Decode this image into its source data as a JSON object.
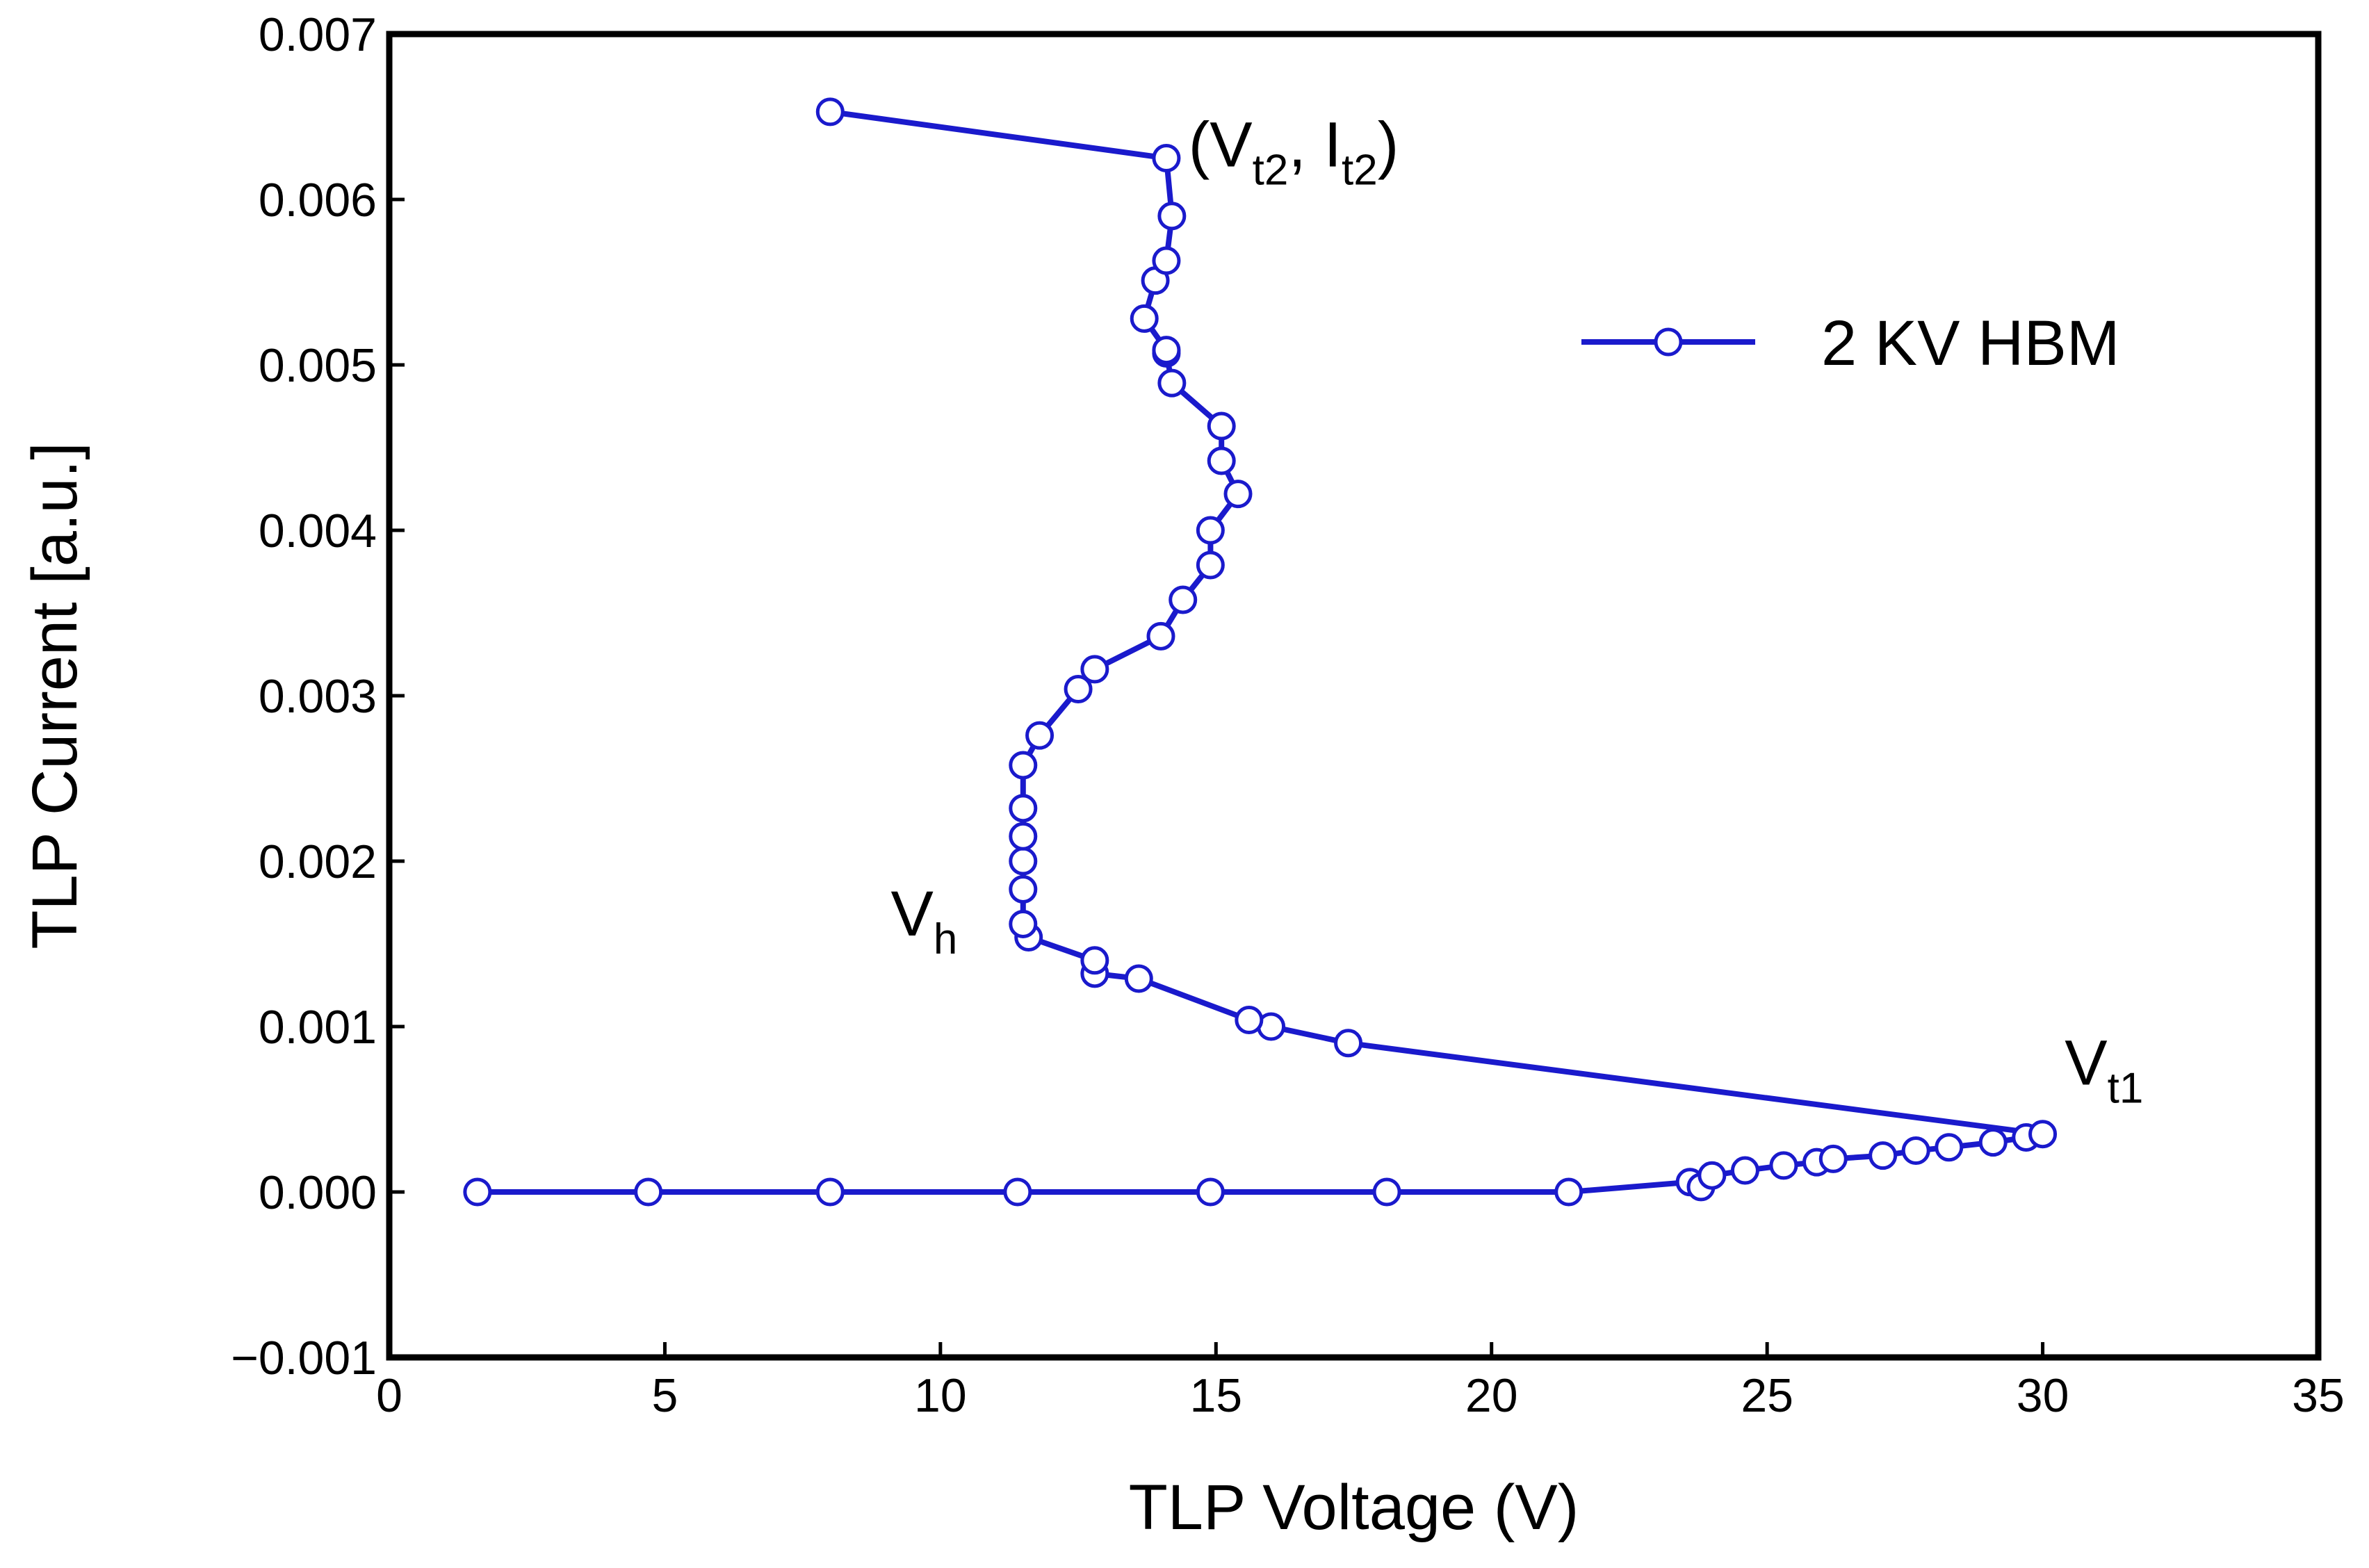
{
  "chart_data": {
    "type": "line",
    "title": "",
    "xlabel": "TLP Voltage (V)",
    "ylabel": "TLP Current [a.u.]",
    "xlim": [
      0,
      35
    ],
    "ylim": [
      -0.001,
      0.007
    ],
    "xticks": [
      0,
      5,
      10,
      15,
      20,
      25,
      30,
      35
    ],
    "xtick_labels": [
      "0",
      "5",
      "10",
      "15",
      "20",
      "25",
      "30",
      "35"
    ],
    "yticks": [
      -0.001,
      0.0,
      0.001,
      0.002,
      0.003,
      0.004,
      0.005,
      0.006,
      0.007
    ],
    "ytick_labels": [
      "−0.001",
      "0.000",
      "0.001",
      "0.002",
      "0.003",
      "0.004",
      "0.005",
      "0.006",
      "0.007"
    ],
    "grid": false,
    "legend_position": "upper-right",
    "series": [
      {
        "name": "2 KV HBM",
        "color": "#1a1acc",
        "marker": "open-circle",
        "points": [
          [
            1.6,
            0.0
          ],
          [
            4.7,
            0.0
          ],
          [
            8.0,
            0.0
          ],
          [
            11.4,
            0.0
          ],
          [
            14.9,
            0.0
          ],
          [
            18.1,
            0.0
          ],
          [
            21.4,
            0.0
          ],
          [
            23.6,
            6e-05
          ],
          [
            23.8,
            3e-05
          ],
          [
            24.0,
            0.0001
          ],
          [
            24.6,
            0.00013
          ],
          [
            25.3,
            0.00016
          ],
          [
            25.9,
            0.00018
          ],
          [
            26.2,
            0.0002
          ],
          [
            27.1,
            0.00022
          ],
          [
            27.7,
            0.00025
          ],
          [
            28.3,
            0.00027
          ],
          [
            29.1,
            0.0003
          ],
          [
            29.7,
            0.00033
          ],
          [
            30.0,
            0.00035
          ],
          [
            17.4,
            0.0009
          ],
          [
            16.0,
            0.001
          ],
          [
            15.6,
            0.00104
          ],
          [
            13.6,
            0.00129
          ],
          [
            12.8,
            0.00132
          ],
          [
            12.8,
            0.0014
          ],
          [
            11.6,
            0.00154
          ],
          [
            11.5,
            0.00162
          ],
          [
            11.5,
            0.00183
          ],
          [
            11.5,
            0.002
          ],
          [
            11.5,
            0.00215
          ],
          [
            11.5,
            0.00232
          ],
          [
            11.5,
            0.00258
          ],
          [
            11.8,
            0.00276
          ],
          [
            12.5,
            0.00304
          ],
          [
            12.8,
            0.00316
          ],
          [
            14.0,
            0.00336
          ],
          [
            14.4,
            0.00358
          ],
          [
            14.9,
            0.00379
          ],
          [
            14.9,
            0.004
          ],
          [
            15.4,
            0.00422
          ],
          [
            15.1,
            0.00442
          ],
          [
            15.1,
            0.00463
          ],
          [
            14.2,
            0.00489
          ],
          [
            14.1,
            0.00507
          ],
          [
            14.1,
            0.00509
          ],
          [
            13.7,
            0.00528
          ],
          [
            13.9,
            0.00551
          ],
          [
            14.1,
            0.00563
          ],
          [
            14.2,
            0.0059
          ],
          [
            14.1,
            0.00625
          ],
          [
            8.0,
            0.00653
          ]
        ]
      }
    ],
    "annotations": [
      {
        "name": "vt2-it2",
        "main": "(V",
        "sub1": "t2",
        "mid": ", I",
        "sub2": "t2",
        "end": ")",
        "x": 14.5,
        "y": 0.0062
      },
      {
        "name": "vh",
        "main": "V",
        "sub": "h",
        "x": 9.1,
        "y": 0.00155
      },
      {
        "name": "vt1",
        "main": "V",
        "sub": "t1",
        "x": 30.4,
        "y": 0.00065
      }
    ]
  }
}
